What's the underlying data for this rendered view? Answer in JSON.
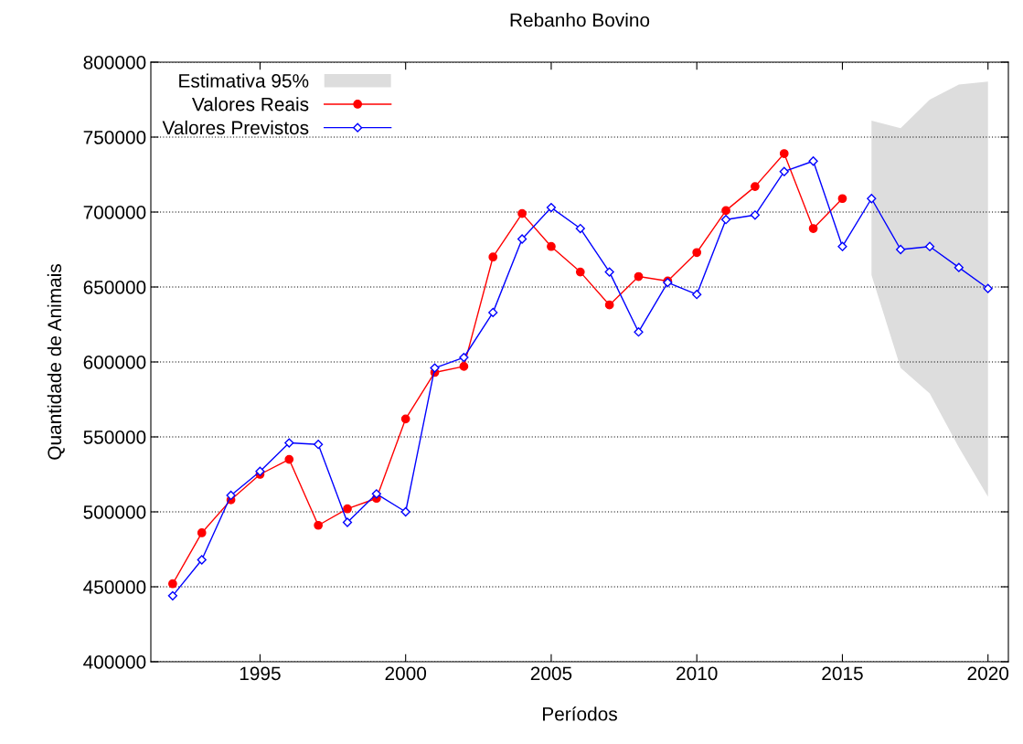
{
  "chart_data": {
    "type": "line",
    "title": "Rebanho Bovino",
    "xlabel": "Períodos",
    "ylabel": "Quantidade de Animais",
    "xlim": [
      1991.25,
      2020.7
    ],
    "xticks": [
      1995,
      2000,
      2005,
      2010,
      2015,
      2020
    ],
    "ylim": [
      400000,
      800000
    ],
    "yticks": [
      400000,
      450000,
      500000,
      550000,
      600000,
      650000,
      700000,
      750000,
      800000
    ],
    "grid": "y",
    "legend": "top left",
    "series": [
      {
        "name": "Estimativa 95%",
        "color": "#dddddd",
        "x": [
          2016,
          2017,
          2018,
          2019,
          2020
        ],
        "values": [
          null,
          null,
          null,
          null,
          null
        ],
        "lower": [
          658000,
          596000,
          579000,
          543000,
          510000
        ],
        "upper": [
          761000,
          756000,
          775000,
          785000,
          787000
        ]
      },
      {
        "name": "Valores Reais",
        "color": "#ff0000",
        "marker": "circle",
        "x": [
          1992,
          1993,
          1994,
          1995,
          1996,
          1997,
          1998,
          1999,
          2000,
          2001,
          2002,
          2003,
          2004,
          2005,
          2006,
          2007,
          2008,
          2009,
          2010,
          2011,
          2012,
          2013,
          2014,
          2015
        ],
        "values": [
          452000,
          486000,
          508000,
          525000,
          535000,
          491000,
          502000,
          509000,
          562000,
          593000,
          597000,
          670000,
          699000,
          677000,
          660000,
          638000,
          657000,
          654000,
          673000,
          701000,
          717000,
          739000,
          689000,
          709000
        ]
      },
      {
        "name": "Valores Previstos",
        "color": "#0000ff",
        "marker": "diamond",
        "x": [
          1992,
          1993,
          1994,
          1995,
          1996,
          1997,
          1998,
          1999,
          2000,
          2001,
          2002,
          2003,
          2004,
          2005,
          2006,
          2007,
          2008,
          2009,
          2010,
          2011,
          2012,
          2013,
          2014,
          2015,
          2016,
          2017,
          2018,
          2019,
          2020
        ],
        "values": [
          444000,
          468000,
          511000,
          527000,
          546000,
          545000,
          493000,
          512000,
          500000,
          596000,
          603000,
          633000,
          682000,
          703000,
          689000,
          660000,
          620000,
          653000,
          645000,
          695000,
          698000,
          727000,
          734000,
          677000,
          709000,
          675000,
          677000,
          663000,
          649000
        ]
      }
    ]
  }
}
